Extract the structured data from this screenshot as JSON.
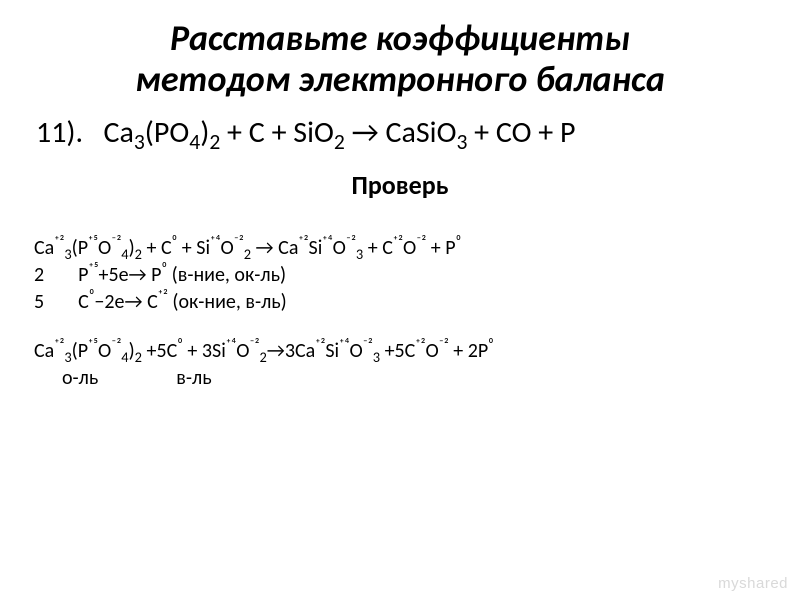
{
  "title": {
    "line1": "Расставьте коэффициенты",
    "line2": "методом электронного баланса"
  },
  "equation": {
    "num": "11).",
    "lhs_ca3": "Ca",
    "lhs_ca3_sub": "3",
    "lhs_po4": "(PO",
    "lhs_po4_sub4": "4",
    "lhs_po4_close": ")",
    "lhs_po4_sub2": "2",
    "plus": " + ",
    "c": "C",
    "sio2": "SiO",
    "sio2_sub": "2",
    "arrow": " → ",
    "casio3": "CaSiO",
    "casio3_sub": "3",
    "co": "CO",
    "p": "P"
  },
  "check_label": "Проверь",
  "work": {
    "l1_a": "Ca",
    "l1_a_sup": "⁺²",
    "l1_a_sub": "3",
    "l1_b": "(P",
    "l1_b_sup": "⁺⁵",
    "l1_c": "O",
    "l1_c_sup": "⁻²",
    "l1_c_sub": "4",
    "l1_d": ")",
    "l1_d_sub": "2",
    "l1_plus": " + C",
    "l1_c0_sup": "⁰",
    "l1_e": " + Si",
    "l1_e_sup": "⁺⁴",
    "l1_f": "O",
    "l1_f_sup": "⁻²",
    "l1_f_sub": "2",
    "l1_arrow": " → Ca",
    "l1_g_sup": "⁺²",
    "l1_h": "Si",
    "l1_h_sup": "⁺⁴",
    "l1_i": "O",
    "l1_i_sup": "⁻²",
    "l1_i_sub": "3",
    "l1_j": " + C",
    "l1_j_sup": "⁺²",
    "l1_k": "O",
    "l1_k_sup": "⁻²",
    "l1_l": " + P",
    "l1_l_sup": "⁰",
    "l2_num": "2",
    "l2_a": "P",
    "l2_a_sup": "⁺⁵",
    "l2_b": "+5e→ P",
    "l2_b_sup": "⁰",
    "l2_c": " (в-ние, ок-ль)",
    "l3_num": "5",
    "l3_a": "C",
    "l3_a_sup": "⁰",
    "l3_b": "−2e→ C",
    "l3_b_sup": "⁺²",
    "l3_c": " (ок-ние, в-ль)",
    "l4_a": "Ca",
    "l4_a_sup": "⁺²",
    "l4_a_sub": "3",
    "l4_b": "(P",
    "l4_b_sup": "⁺⁵",
    "l4_c": "O",
    "l4_c_sup": "⁻²",
    "l4_c_sub": "4",
    "l4_d": ")",
    "l4_d_sub": "2",
    "l4_e": " +5C",
    "l4_e_sup": "⁰",
    "l4_f": " + 3Si",
    "l4_f_sup": "⁺⁴",
    "l4_g": "O",
    "l4_g_sup": "⁻²",
    "l4_g_sub": "2",
    "l4_arrow": "→3Ca",
    "l4_h_sup": "⁺²",
    "l4_i": "Si",
    "l4_i_sup": "⁺⁴",
    "l4_j": "O",
    "l4_j_sup": "⁻²",
    "l4_j_sub": "3",
    "l4_k": " +5C",
    "l4_k_sup": "⁺²",
    "l4_l": "O",
    "l4_l_sup": "⁻²",
    "l4_m": " + 2P",
    "l4_m_sup": "⁰",
    "l5_a": "о-ль",
    "l5_b": "в-ль"
  },
  "watermark": "myshared"
}
